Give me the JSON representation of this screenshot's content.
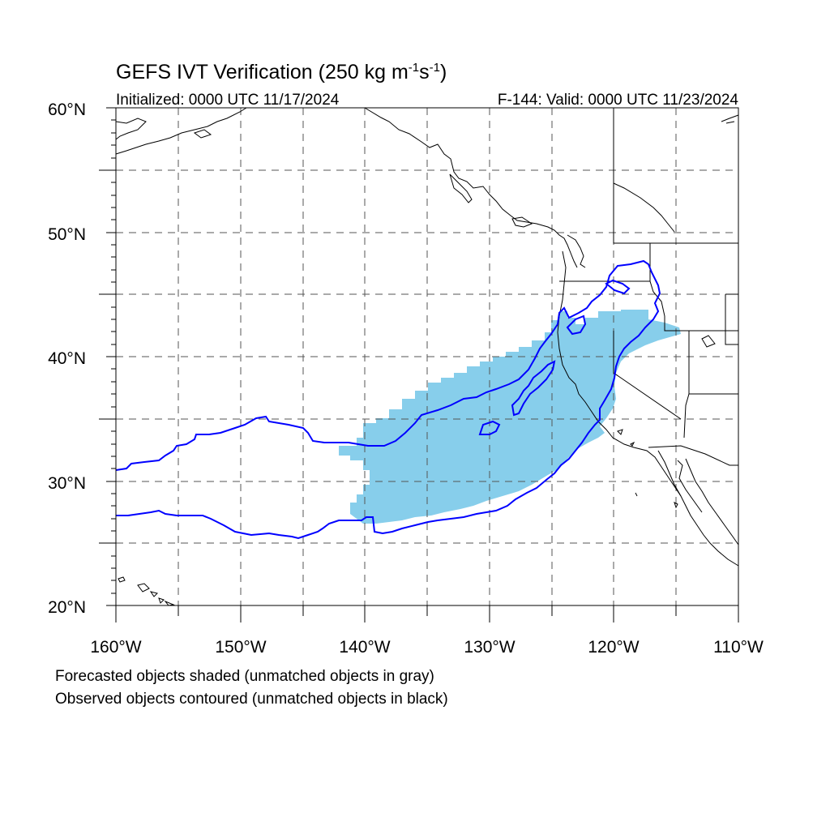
{
  "title": {
    "main": "GEFS IVT Verification (250 kg m",
    "sup1": "-1",
    "s": "s",
    "sup2": "-1",
    "close": ")"
  },
  "subtitle_left": "Initialized: 0000 UTC 11/17/2024",
  "subtitle_right": "F-144: Valid: 0000 UTC 11/23/2024",
  "lat_labels": [
    "60°N",
    "50°N",
    "40°N",
    "30°N",
    "20°N"
  ],
  "lon_labels": [
    "160°W",
    "150°W",
    "140°W",
    "130°W",
    "120°W",
    "110°W"
  ],
  "footnote1": "Forecasted objects shaded (unmatched objects in gray)",
  "footnote2": "Observed objects contoured (unmatched objects in black)",
  "colors": {
    "forecast_fill": "#87ceeb",
    "observed_contour": "#0000ff",
    "coastline": "#000000",
    "grid": "#555555"
  },
  "map_extent": {
    "lon": [
      -160,
      -110
    ],
    "lat": [
      20,
      60
    ]
  }
}
